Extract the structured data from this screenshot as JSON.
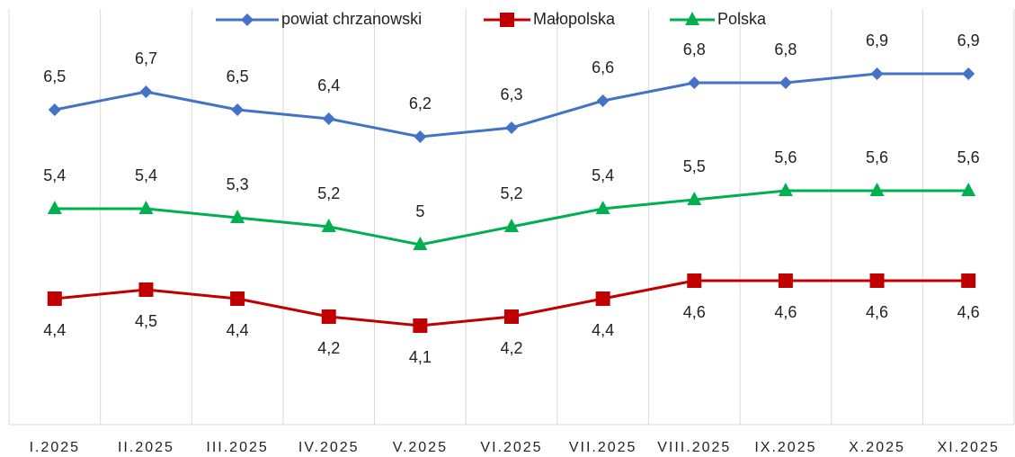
{
  "chart_data": {
    "type": "line",
    "categories": [
      "I.2025",
      "II.2025",
      "III.2025",
      "IV.2025",
      "V.2025",
      "VI.2025",
      "VII.2025",
      "VIII.2025",
      "IX.2025",
      "X.2025",
      "XI.2025"
    ],
    "series": [
      {
        "name": "powiat chrzanowski",
        "color": "#4472c4",
        "marker": "diamond",
        "label_position": "above",
        "values": [
          6.5,
          6.7,
          6.5,
          6.4,
          6.2,
          6.3,
          6.6,
          6.8,
          6.8,
          6.9,
          6.9
        ],
        "value_labels": [
          "6,5",
          "6,7",
          "6,5",
          "6,4",
          "6,2",
          "6,3",
          "6,6",
          "6,8",
          "6,8",
          "6,9",
          "6,9"
        ]
      },
      {
        "name": "Małopolska",
        "color": "#c00000",
        "marker": "square",
        "label_position": "below",
        "values": [
          4.4,
          4.5,
          4.4,
          4.2,
          4.1,
          4.2,
          4.4,
          4.6,
          4.6,
          4.6,
          4.6
        ],
        "value_labels": [
          "4,4",
          "4,5",
          "4,4",
          "4,2",
          "4,1",
          "4,2",
          "4,4",
          "4,6",
          "4,6",
          "4,6",
          "4,6"
        ]
      },
      {
        "name": "Polska",
        "color": "#00b050",
        "marker": "triangle",
        "label_position": "above",
        "values": [
          5.4,
          5.4,
          5.3,
          5.2,
          5.0,
          5.2,
          5.4,
          5.5,
          5.6,
          5.6,
          5.6
        ],
        "value_labels": [
          "5,4",
          "5,4",
          "5,3",
          "5,2",
          "5",
          "5,2",
          "5,4",
          "5,5",
          "5,6",
          "5,6",
          "5,6"
        ]
      }
    ],
    "ylim": [
      3,
      7.7
    ],
    "legend": "top"
  }
}
